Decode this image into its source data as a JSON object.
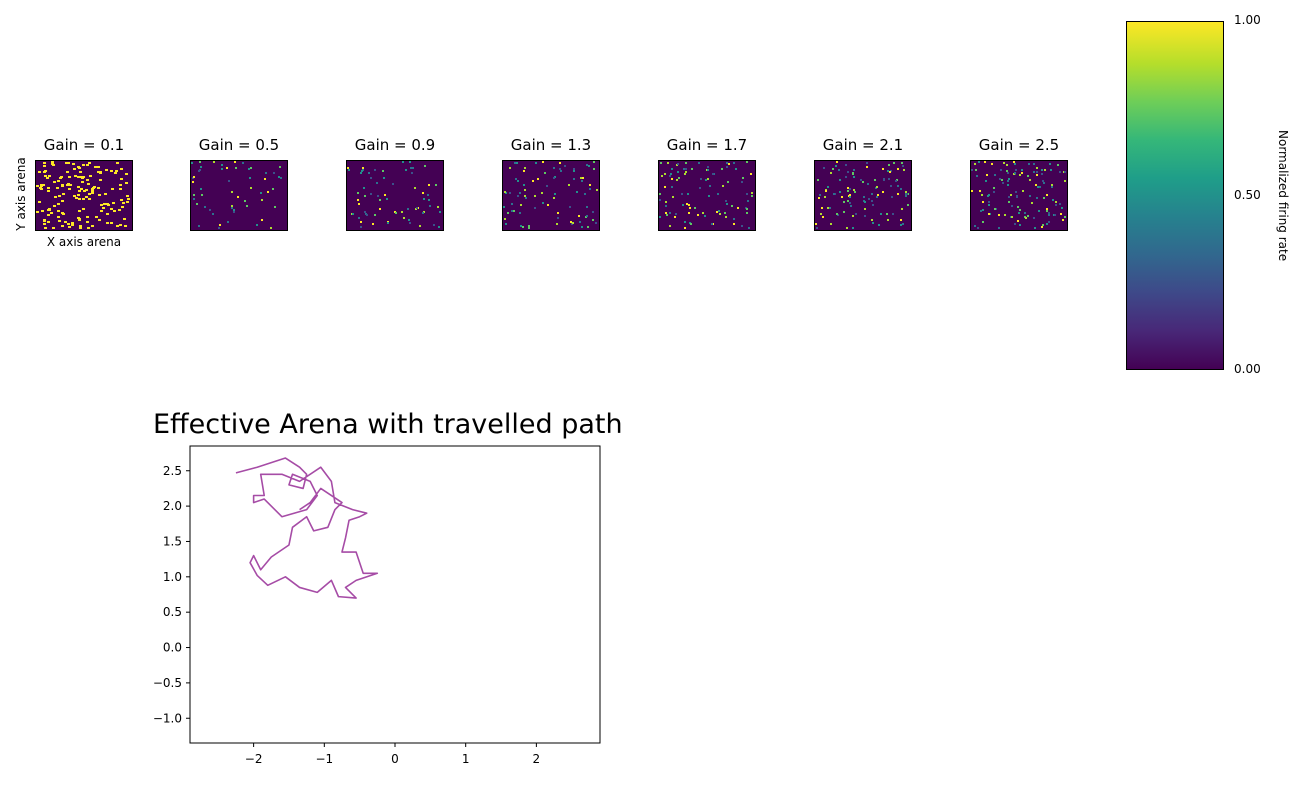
{
  "heatmaps": {
    "ylabel": "Y axis arena",
    "xlabel": "X axis arena",
    "panels": [
      {
        "title": "Gain = 0.1",
        "gain": 0.1
      },
      {
        "title": "Gain = 0.5",
        "gain": 0.5
      },
      {
        "title": "Gain = 0.9",
        "gain": 0.9
      },
      {
        "title": "Gain = 1.3",
        "gain": 1.3
      },
      {
        "title": "Gain = 1.7",
        "gain": 1.7
      },
      {
        "title": "Gain = 2.1",
        "gain": 2.1
      },
      {
        "title": "Gain = 2.5",
        "gain": 2.5
      }
    ]
  },
  "colorbar": {
    "label": "Normalized firing rate",
    "ticks": [
      "0.00",
      "0.50",
      "1.00"
    ],
    "range": [
      0,
      1
    ],
    "colormap": "viridis"
  },
  "chart_data": [
    {
      "type": "heatmap",
      "panels": [
        "Gain = 0.1",
        "Gain = 0.5",
        "Gain = 0.9",
        "Gain = 1.3",
        "Gain = 1.7",
        "Gain = 2.1",
        "Gain = 2.5"
      ],
      "xlabel": "X axis arena",
      "ylabel": "Y axis arena",
      "colorbar_label": "Normalized firing rate",
      "value_range": [
        0,
        1
      ]
    },
    {
      "type": "line",
      "title": "Effective Arena with travelled path",
      "color": "#a64ca6",
      "xlim": [
        -2.9,
        2.9
      ],
      "ylim": [
        -1.35,
        2.85
      ],
      "xticks": [
        -2,
        -1,
        0,
        1,
        2
      ],
      "yticks": [
        -1.0,
        -0.5,
        0.0,
        0.5,
        1.0,
        1.5,
        2.0,
        2.5
      ],
      "path": [
        [
          -2.25,
          2.47
        ],
        [
          -1.95,
          2.55
        ],
        [
          -1.55,
          2.68
        ],
        [
          -1.35,
          2.55
        ],
        [
          -1.25,
          2.45
        ],
        [
          -1.3,
          2.25
        ],
        [
          -1.5,
          2.3
        ],
        [
          -1.45,
          2.45
        ],
        [
          -1.2,
          2.35
        ],
        [
          -1.1,
          2.15
        ],
        [
          -1.25,
          1.95
        ],
        [
          -1.6,
          1.85
        ],
        [
          -1.85,
          2.1
        ],
        [
          -2.0,
          2.05
        ],
        [
          -2.0,
          2.15
        ],
        [
          -1.85,
          2.15
        ],
        [
          -1.9,
          2.45
        ],
        [
          -1.6,
          2.45
        ],
        [
          -1.35,
          2.35
        ],
        [
          -1.05,
          2.55
        ],
        [
          -0.9,
          2.35
        ],
        [
          -0.85,
          2.05
        ],
        [
          -0.6,
          1.95
        ],
        [
          -0.4,
          1.9
        ],
        [
          -0.5,
          1.85
        ],
        [
          -0.65,
          1.8
        ],
        [
          -0.7,
          1.55
        ],
        [
          -0.75,
          1.35
        ],
        [
          -0.55,
          1.35
        ],
        [
          -0.45,
          1.05
        ],
        [
          -0.25,
          1.05
        ],
        [
          -0.55,
          0.95
        ],
        [
          -0.7,
          0.85
        ],
        [
          -0.55,
          0.7
        ],
        [
          -0.8,
          0.72
        ],
        [
          -0.9,
          0.95
        ],
        [
          -1.1,
          0.78
        ],
        [
          -1.35,
          0.85
        ],
        [
          -1.55,
          1.0
        ],
        [
          -1.8,
          0.88
        ],
        [
          -1.95,
          1.02
        ],
        [
          -2.05,
          1.2
        ],
        [
          -2.0,
          1.3
        ],
        [
          -1.9,
          1.1
        ],
        [
          -1.75,
          1.28
        ],
        [
          -1.5,
          1.45
        ],
        [
          -1.45,
          1.7
        ],
        [
          -1.25,
          1.85
        ],
        [
          -1.15,
          1.65
        ],
        [
          -0.95,
          1.7
        ],
        [
          -0.85,
          1.95
        ],
        [
          -0.75,
          2.05
        ],
        [
          -1.05,
          2.25
        ],
        [
          -1.2,
          2.05
        ],
        [
          -1.35,
          1.95
        ]
      ]
    }
  ]
}
